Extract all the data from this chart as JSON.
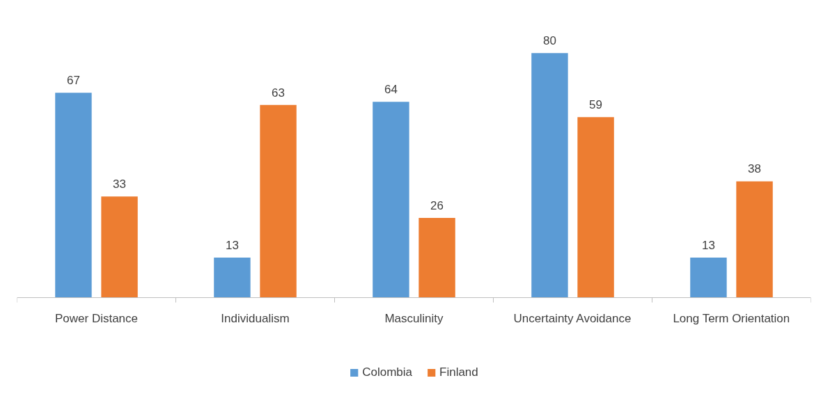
{
  "chart_data": {
    "type": "bar",
    "categories": [
      "Power Distance",
      "Individualism",
      "Masculinity",
      "Uncertainty Avoidance",
      "Long Term Orientation"
    ],
    "series": [
      {
        "name": "Colombia",
        "color": "#5b9bd5",
        "values": [
          67,
          13,
          64,
          80,
          13
        ]
      },
      {
        "name": "Finland",
        "color": "#ed7d31",
        "values": [
          33,
          63,
          26,
          59,
          38
        ]
      }
    ],
    "data_labels": true,
    "grid": false,
    "legend": "bottom"
  }
}
